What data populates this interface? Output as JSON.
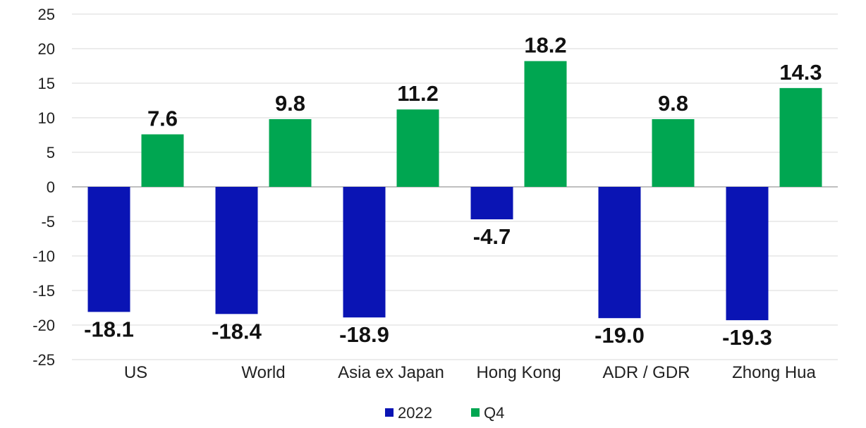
{
  "chart_data": {
    "type": "bar",
    "categories": [
      "US",
      "World",
      "Asia ex Japan",
      "Hong Kong",
      "ADR / GDR",
      "Zhong Hua"
    ],
    "series": [
      {
        "name": "2022",
        "color": "#0a14b4",
        "values": [
          -18.1,
          -18.4,
          -18.9,
          -4.7,
          -19.0,
          -19.3
        ],
        "labels": [
          "-18.1",
          "-18.4",
          "-18.9",
          "-4.7",
          "-19.0",
          "-19.3"
        ]
      },
      {
        "name": "Q4",
        "color": "#00a651",
        "values": [
          7.6,
          9.8,
          11.2,
          18.2,
          9.8,
          14.3
        ],
        "labels": [
          "7.6",
          "9.8",
          "11.2",
          "18.2",
          "9.8",
          "14.3"
        ]
      }
    ],
    "yticks": [
      "25",
      "20",
      "15",
      "10",
      "5",
      "0",
      "-5",
      "-10",
      "-15",
      "-20",
      "-25"
    ],
    "ylim": [
      -25,
      25
    ],
    "title": "",
    "xlabel": "",
    "ylabel": "",
    "grid": true,
    "legend_position": "bottom-center"
  }
}
